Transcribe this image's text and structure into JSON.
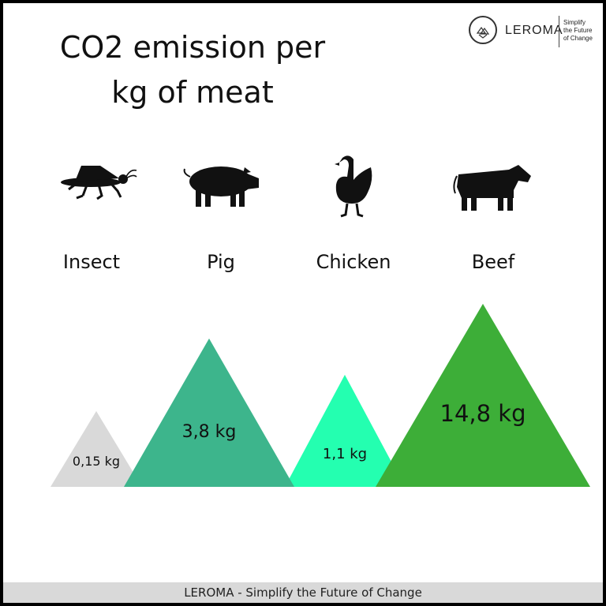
{
  "header": {
    "title_line1": "CO2 emission per",
    "title_line2": "kg of meat"
  },
  "brand": {
    "name": "LEROMA",
    "tagline_lines": [
      "Simplify",
      "the Future",
      "of Change"
    ]
  },
  "footer": {
    "text": "LEROMA - Simplify the Future of Change"
  },
  "chart_data": {
    "type": "bar",
    "title": "CO2 emission per kg of meat",
    "categories": [
      "Insect",
      "Pig",
      "Chicken",
      "Beef"
    ],
    "values": [
      0.15,
      3.8,
      1.1,
      14.8
    ],
    "value_labels": [
      "0,15 kg",
      "3,8 kg",
      "1,1 kg",
      "14,8 kg"
    ],
    "unit": "kg",
    "icons": [
      "grasshopper-icon",
      "pig-icon",
      "chicken-icon",
      "cow-icon"
    ],
    "colors": [
      "#d9d9d9",
      "#3db58c",
      "#24ffb0",
      "#3dae38"
    ],
    "icon_circle_colors": [
      "#d9d9d9",
      "#3db58c",
      "#24ffb0",
      "#3dae38"
    ],
    "xlabel": "",
    "ylabel": ""
  }
}
